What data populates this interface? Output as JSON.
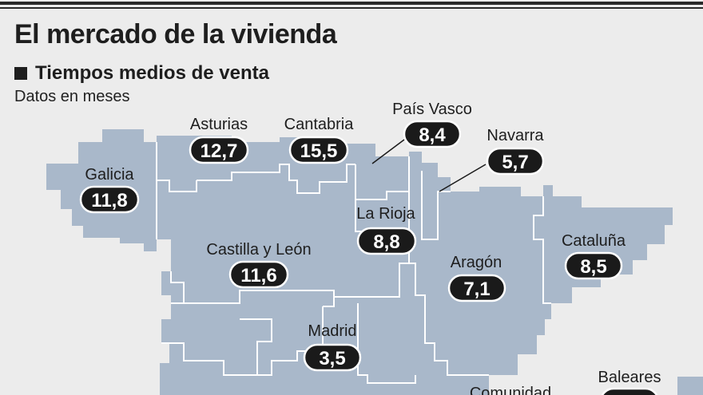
{
  "title": "El mercado de la vivienda",
  "subtitle": "Tiempos medios de venta",
  "note": "Datos en meses",
  "colors": {
    "map_fill": "#a9b8ca",
    "badge": "#1a1a1a",
    "background": "#ececec"
  },
  "regions": [
    {
      "name": "Asturias",
      "value": "12,7"
    },
    {
      "name": "Cantabria",
      "value": "15,5"
    },
    {
      "name": "País Vasco",
      "value": "8,4"
    },
    {
      "name": "Navarra",
      "value": "5,7"
    },
    {
      "name": "Galicia",
      "value": "11,8"
    },
    {
      "name": "La Rioja",
      "value": "8,8"
    },
    {
      "name": "Castilla y León",
      "value": "11,6"
    },
    {
      "name": "Aragón",
      "value": "7,1"
    },
    {
      "name": "Cataluña",
      "value": "8,5"
    },
    {
      "name": "Madrid",
      "value": "3,5"
    },
    {
      "name": "Baleares",
      "value": ""
    },
    {
      "name": "Comunidad",
      "value": ""
    }
  ]
}
